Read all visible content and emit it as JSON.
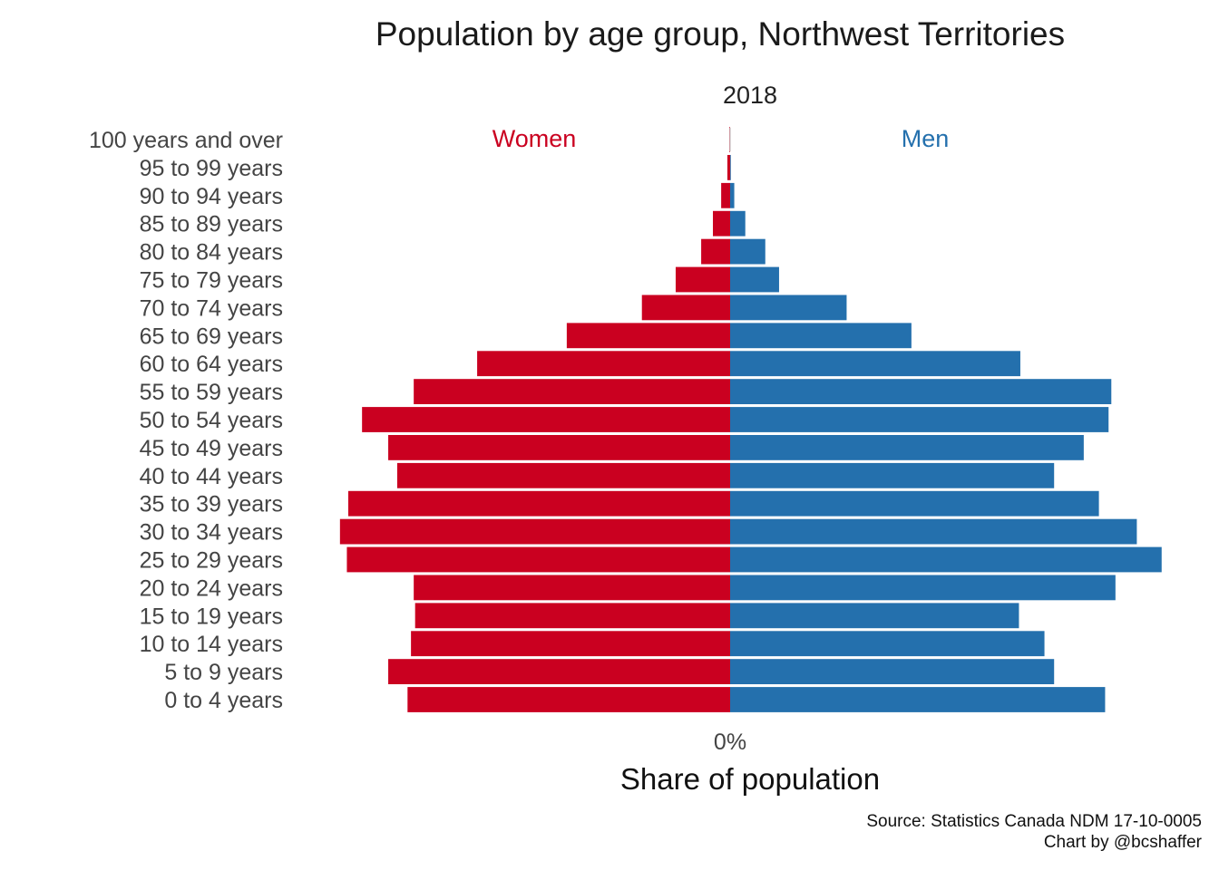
{
  "chart_data": {
    "type": "bar",
    "orientation": "horizontal-population-pyramid",
    "title": "Population by age group, Northwest Territories",
    "subtitle": "2018",
    "xlabel": "Share of population",
    "x_ticks": [
      "0%"
    ],
    "categories": [
      "0 to 4 years",
      "5 to 9 years",
      "10 to 14 years",
      "15 to 19 years",
      "20 to 24 years",
      "25 to 29 years",
      "30 to 34 years",
      "35 to 39 years",
      "40 to 44 years",
      "45 to 49 years",
      "50 to 54 years",
      "55 to 59 years",
      "60 to 64 years",
      "65 to 69 years",
      "70 to 74 years",
      "75 to 79 years",
      "80 to 84 years",
      "85 to 89 years",
      "90 to 94 years",
      "95 to 99 years",
      "100 years and over"
    ],
    "xlim": [
      -0.0625,
      0.0625
    ],
    "series": [
      {
        "name": "Women",
        "color": "#ca0020",
        "direction": "left",
        "values": [
          0.0468,
          0.0496,
          0.0463,
          0.0457,
          0.0459,
          0.0556,
          0.0566,
          0.0554,
          0.0483,
          0.0496,
          0.0534,
          0.0459,
          0.0367,
          0.0237,
          0.0128,
          0.0079,
          0.0042,
          0.0025,
          0.0013,
          0.0004,
          0.0001
        ]
      },
      {
        "name": "Men",
        "color": "#2470ad",
        "direction": "right",
        "values": [
          0.0544,
          0.047,
          0.0456,
          0.0419,
          0.0559,
          0.0626,
          0.059,
          0.0535,
          0.047,
          0.0513,
          0.0549,
          0.0553,
          0.0421,
          0.0263,
          0.0169,
          0.0071,
          0.0051,
          0.0022,
          0.0006,
          0.0001,
          0.0
        ]
      }
    ],
    "grid": false,
    "legend": "direct labels above bars (Women left, Men right)"
  },
  "caption": {
    "line1": "Source: Statistics Canada NDM 17-10-0005",
    "line2": "Chart by @bcshaffer"
  }
}
